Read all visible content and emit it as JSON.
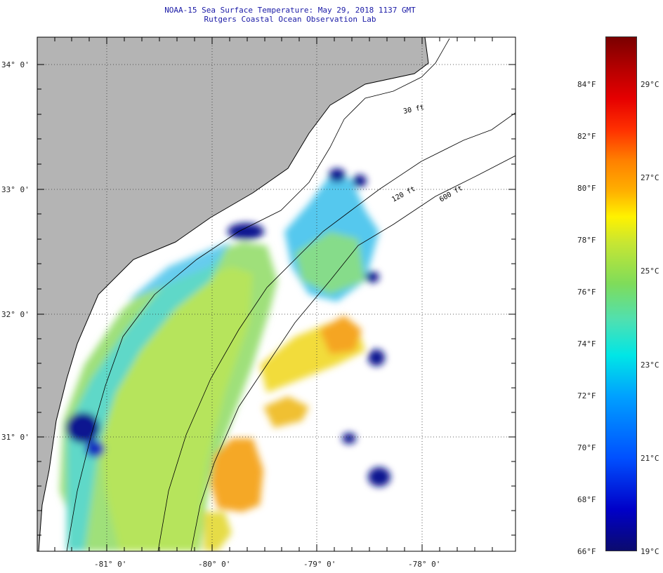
{
  "header": {
    "title": "NOAA-15 Sea Surface Temperature:  May 29, 2018 1137 GMT",
    "subtitle": "Rutgers Coastal Ocean Observation Lab"
  },
  "map": {
    "lat_labels": [
      "34° 0'",
      "33° 0'",
      "32° 0'",
      "31° 0'"
    ],
    "lon_labels": [
      "-81° 0'",
      "-80° 0'",
      "-79° 0'",
      "-78° 0'"
    ],
    "contours": [
      "30 ft",
      "120 ft",
      "600 ft"
    ],
    "colors": {
      "land": "#b4b4b4",
      "cloud": "#ffffff",
      "coast": "#000000"
    }
  },
  "colorbar": {
    "fahrenheit": [
      "84°F",
      "82°F",
      "80°F",
      "78°F",
      "76°F",
      "74°F",
      "72°F",
      "70°F",
      "68°F",
      "66°F"
    ],
    "celsius": [
      "29°C",
      "27°C",
      "25°C",
      "23°C",
      "21°C",
      "19°C"
    ]
  }
}
